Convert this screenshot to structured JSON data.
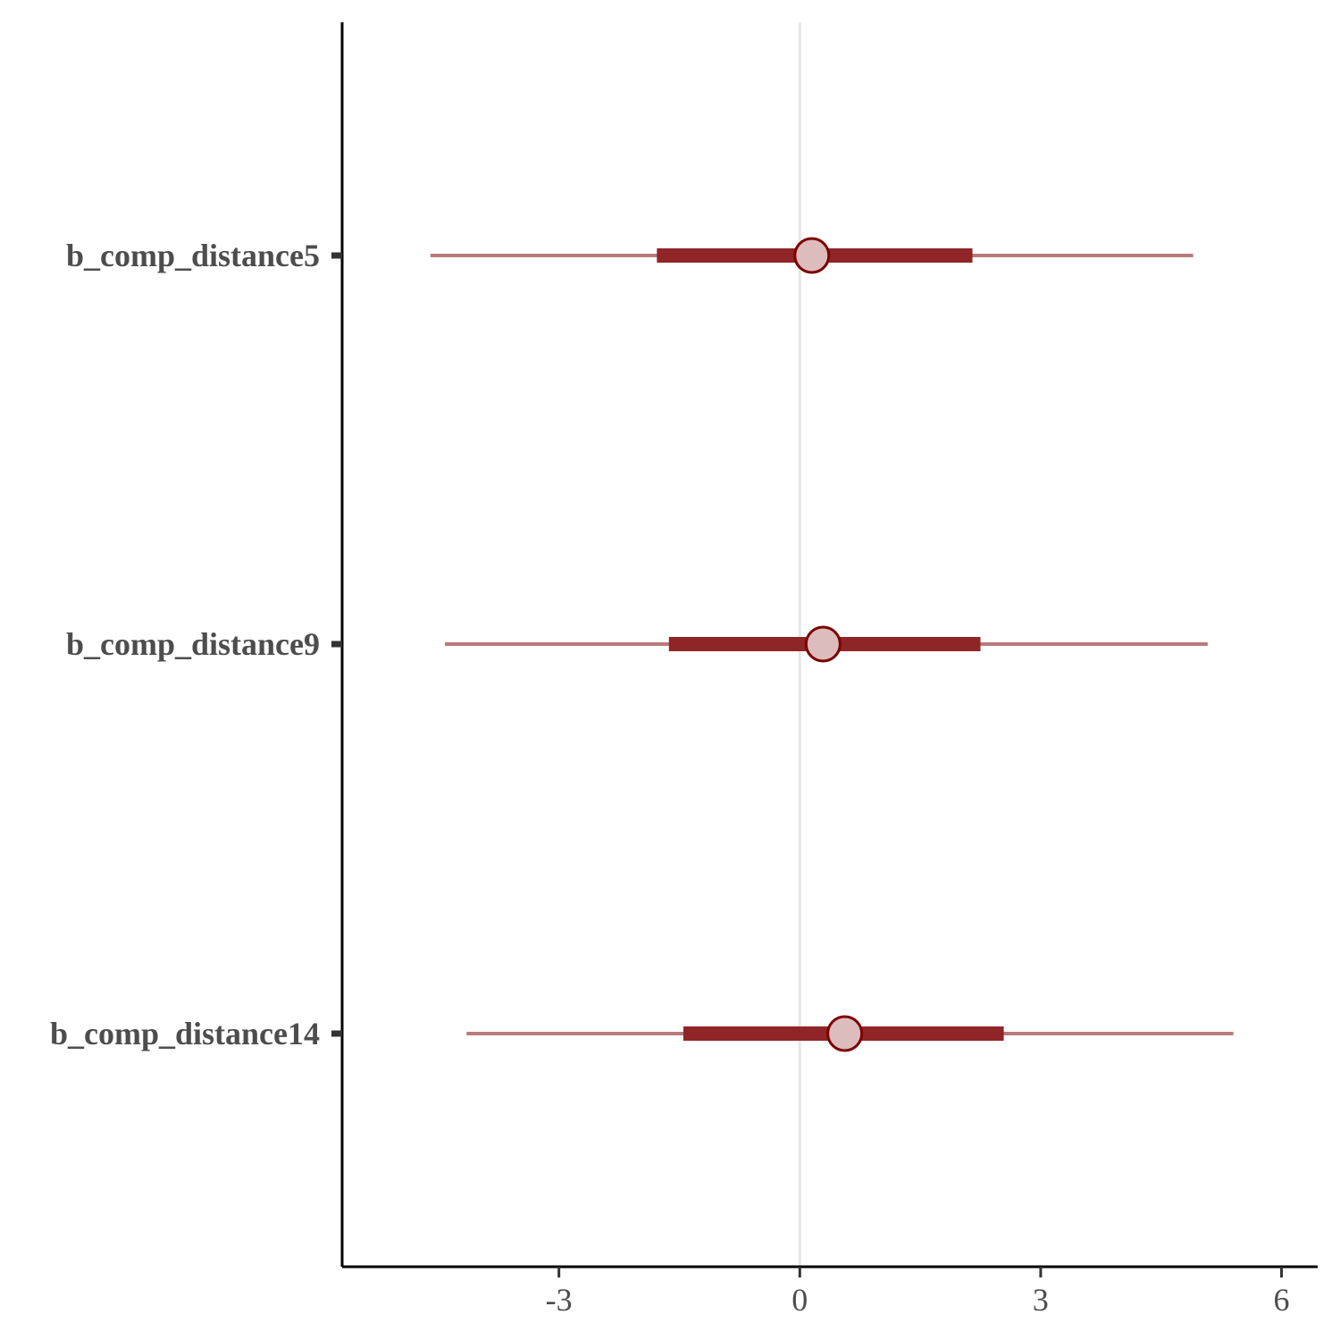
{
  "chart_data": {
    "type": "interval",
    "x_ticks": [
      -3,
      0,
      3,
      6
    ],
    "xlim": [
      -5.7,
      6.45
    ],
    "reference_line": 0,
    "grid": false,
    "parameters": [
      {
        "label": "b_comp_distance5",
        "median": 0.15,
        "inner": [
          -1.78,
          2.15
        ],
        "outer": [
          -4.6,
          4.9
        ]
      },
      {
        "label": "b_comp_distance9",
        "median": 0.29,
        "inner": [
          -1.63,
          2.25
        ],
        "outer": [
          -4.42,
          5.08
        ]
      },
      {
        "label": "b_comp_distance14",
        "median": 0.56,
        "inner": [
          -1.45,
          2.54
        ],
        "outer": [
          -4.15,
          5.4
        ]
      }
    ],
    "colors": {
      "outer_line": "#b77b7b",
      "inner_line": "#8f2527",
      "point_fill": "#dcbcbc",
      "point_stroke": "#7c0000",
      "reference_line": "#e6e6e6",
      "axis": "#000000",
      "text": "#4d4d4d"
    }
  }
}
